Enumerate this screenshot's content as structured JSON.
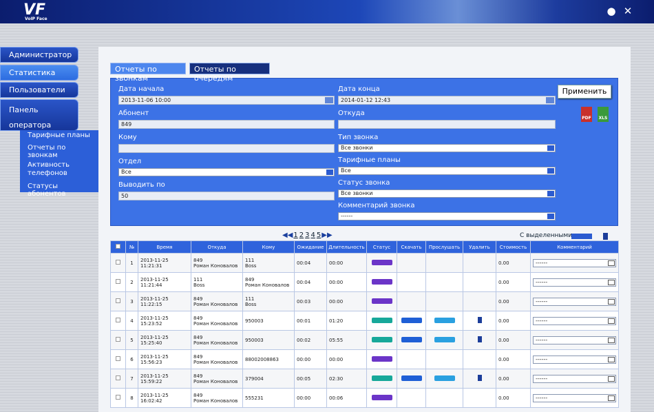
{
  "header": {
    "logo": "VF",
    "product": "VoIP Face"
  },
  "sidebar": {
    "menu": [
      "Администратор",
      "Статистика",
      "Пользователи",
      "Панель оператора"
    ],
    "submenu": [
      "Тарифные планы",
      "Отчеты по звонкам",
      "Активность телефонов",
      "Статусы абонентов"
    ]
  },
  "tabs": [
    "Отчеты по звонкам",
    "Отчеты по очередям"
  ],
  "filters": {
    "left": [
      {
        "label": "Дата начала",
        "value": "2013-11-06 10:00",
        "kind": "date"
      },
      {
        "label": "Абонент",
        "value": "849",
        "kind": "text"
      },
      {
        "label": "Кому",
        "kind": "text"
      },
      {
        "label": "Отдел",
        "value": "Все",
        "kind": "select"
      },
      {
        "label": "Выводить по",
        "value": "50",
        "kind": "text"
      }
    ],
    "right": [
      {
        "label": "Дата конца",
        "value": "2014-01-12 12:43",
        "kind": "date"
      },
      {
        "label": "Откуда",
        "kind": "text"
      },
      {
        "label": "Тип звонка",
        "value": "Все звонки",
        "kind": "select"
      },
      {
        "label": "Тарифные планы",
        "value": "Все",
        "kind": "select"
      },
      {
        "label": "Статус звонка",
        "value": "Все звонки",
        "kind": "select"
      },
      {
        "label": "Комментарий звонка",
        "value": "------",
        "kind": "select"
      }
    ]
  },
  "apply_button": "Применить",
  "exports": [
    "PDF",
    "XLS"
  ],
  "pagination": {
    "pages": [
      "1",
      "2",
      "3",
      "4",
      "5"
    ],
    "bulk_label": "С выделенными:"
  },
  "table": {
    "columns": [
      "№",
      "Время",
      "Откуда",
      "Кому",
      "Ожидание",
      "Длительность",
      "Статус",
      "Скачать",
      "Прослушать",
      "Удалить",
      "Стоимость",
      "Комментарий"
    ],
    "rows": [
      {
        "n": "1",
        "time": "2013-11-25 11:21:31",
        "from": [
          "849",
          "Роман Коновалов"
        ],
        "to": [
          "111",
          "Boss"
        ],
        "wait": "00:04",
        "duration": "00:00",
        "recorded": false,
        "cost": "0.00",
        "comment": "------"
      },
      {
        "n": "2",
        "time": "2013-11-25 11:21:44",
        "from": [
          "111",
          "Boss"
        ],
        "to": [
          "849",
          "Роман Коновалов"
        ],
        "wait": "00:04",
        "duration": "00:00",
        "recorded": false,
        "cost": "0.00",
        "comment": "------"
      },
      {
        "n": "3",
        "time": "2013-11-25 11:22:15",
        "from": [
          "849",
          "Роман Коновалов"
        ],
        "to": [
          "111",
          "Boss"
        ],
        "wait": "00:03",
        "duration": "00:00",
        "recorded": false,
        "cost": "0.00",
        "comment": "------"
      },
      {
        "n": "4",
        "time": "2013-11-25 15:23:52",
        "from": [
          "849",
          "Роман Коновалов"
        ],
        "to": [
          "950003"
        ],
        "wait": "00:01",
        "duration": "01:20",
        "recorded": true,
        "cost": "0.00",
        "comment": "------"
      },
      {
        "n": "5",
        "time": "2013-11-25 15:25:40",
        "from": [
          "849",
          "Роман Коновалов"
        ],
        "to": [
          "950003"
        ],
        "wait": "00:02",
        "duration": "05:55",
        "recorded": true,
        "cost": "0.00",
        "comment": "------"
      },
      {
        "n": "6",
        "time": "2013-11-25 15:56:23",
        "from": [
          "849",
          "Роман Коновалов"
        ],
        "to": [
          "88002008863"
        ],
        "wait": "00:00",
        "duration": "00:00",
        "recorded": false,
        "cost": "0.00",
        "comment": "------"
      },
      {
        "n": "7",
        "time": "2013-11-25 15:59:22",
        "from": [
          "849",
          "Роман Коновалов"
        ],
        "to": [
          "379004"
        ],
        "wait": "00:05",
        "duration": "02:30",
        "recorded": true,
        "cost": "0.00",
        "comment": "------"
      },
      {
        "n": "8",
        "time": "2013-11-25 16:02:42",
        "from": [
          "849",
          "Роман Коновалов"
        ],
        "to": [
          "555231"
        ],
        "wait": "00:00",
        "duration": "00:06",
        "recorded": false,
        "cost": "0.00",
        "comment": "------"
      }
    ]
  }
}
